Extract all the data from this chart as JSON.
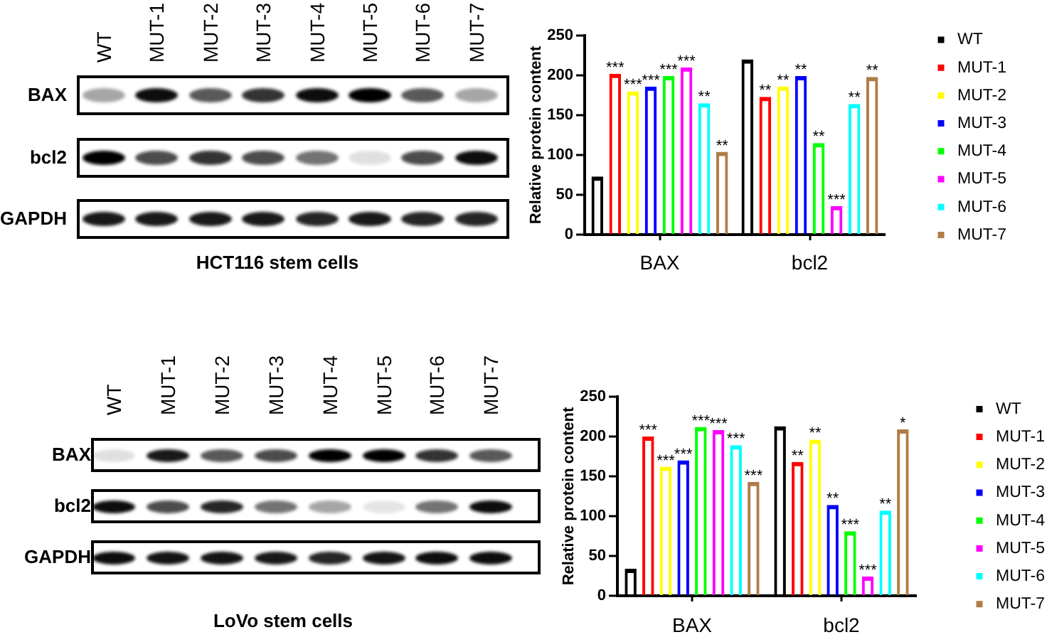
{
  "chart_data": [
    {
      "type": "other",
      "categories": [
        "WT",
        "MUT-1",
        "MUT-2",
        "MUT-3",
        "MUT-4",
        "MUT-5",
        "MUT-6",
        "MUT-7"
      ],
      "y_categories": [
        "BAX",
        "bcl2",
        "GAPDH"
      ],
      "xlabel": "HCT116 stem cells"
    },
    {
      "type": "bar",
      "ylabel": "Relative protein content",
      "categories": [
        "BAX",
        "bcl2"
      ],
      "ylim": [
        0,
        250
      ],
      "yticks": [
        0,
        50,
        100,
        150,
        200,
        250
      ],
      "grid": false,
      "legend": "right",
      "series": [
        {
          "name": "WT",
          "color": "#000000",
          "values": [
            73,
            220
          ],
          "value_labels": [
            null,
            null
          ]
        },
        {
          "name": "MUT-1",
          "color": "#ff0000",
          "values": [
            202,
            173
          ],
          "value_labels": [
            "***",
            "**"
          ]
        },
        {
          "name": "MUT-2",
          "color": "#ffff00",
          "values": [
            180,
            186
          ],
          "value_labels": [
            "***",
            "**"
          ]
        },
        {
          "name": "MUT-3",
          "color": "#0000ff",
          "values": [
            186,
            199
          ],
          "value_labels": [
            "***",
            "**"
          ]
        },
        {
          "name": "MUT-4",
          "color": "#00ff00",
          "values": [
            199,
            115
          ],
          "value_labels": [
            "***",
            "**"
          ]
        },
        {
          "name": "MUT-5",
          "color": "#ff00ff",
          "values": [
            210,
            36
          ],
          "value_labels": [
            "***",
            "***"
          ]
        },
        {
          "name": "MUT-6",
          "color": "#00ffff",
          "values": [
            165,
            164
          ],
          "value_labels": [
            "**",
            "**"
          ]
        },
        {
          "name": "MUT-7",
          "color": "#b07c46",
          "values": [
            104,
            198
          ],
          "value_labels": [
            "**",
            "**"
          ]
        }
      ]
    },
    {
      "type": "other",
      "categories": [
        "WT",
        "MUT-1",
        "MUT-2",
        "MUT-3",
        "MUT-4",
        "MUT-5",
        "MUT-6",
        "MUT-7"
      ],
      "y_categories": [
        "BAX",
        "bcl2",
        "GAPDH"
      ],
      "xlabel": "LoVo stem cells"
    },
    {
      "type": "bar",
      "ylabel": "Relative protein content",
      "categories": [
        "BAX",
        "bcl2"
      ],
      "ylim": [
        0,
        250
      ],
      "yticks": [
        0,
        50,
        100,
        150,
        200,
        250
      ],
      "grid": false,
      "legend": "right",
      "series": [
        {
          "name": "WT",
          "color": "#000000",
          "values": [
            34,
            213
          ],
          "value_labels": [
            null,
            null
          ]
        },
        {
          "name": "MUT-1",
          "color": "#ff0000",
          "values": [
            200,
            168
          ],
          "value_labels": [
            "***",
            "**"
          ]
        },
        {
          "name": "MUT-2",
          "color": "#ffff00",
          "values": [
            162,
            196
          ],
          "value_labels": [
            "***",
            "**"
          ]
        },
        {
          "name": "MUT-3",
          "color": "#0000ff",
          "values": [
            170,
            114
          ],
          "value_labels": [
            "***",
            "**"
          ]
        },
        {
          "name": "MUT-4",
          "color": "#00ff00",
          "values": [
            212,
            81
          ],
          "value_labels": [
            "***",
            "***"
          ]
        },
        {
          "name": "MUT-5",
          "color": "#ff00ff",
          "values": [
            208,
            24
          ],
          "value_labels": [
            "***",
            "***"
          ]
        },
        {
          "name": "MUT-6",
          "color": "#00ffff",
          "values": [
            189,
            107
          ],
          "value_labels": [
            "***",
            "**"
          ]
        },
        {
          "name": "MUT-7",
          "color": "#b07c46",
          "values": [
            143,
            209
          ],
          "value_labels": [
            "***",
            "*"
          ]
        }
      ]
    }
  ]
}
